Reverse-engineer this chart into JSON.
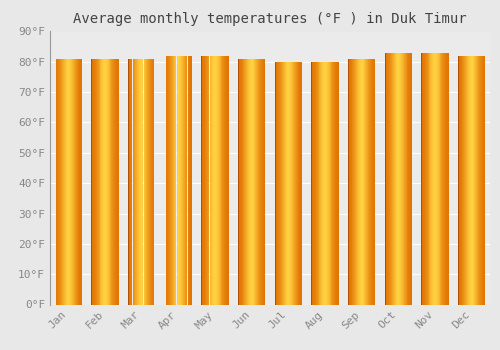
{
  "title": "Average monthly temperatures (°F ) in Duk Timur",
  "months": [
    "Jan",
    "Feb",
    "Mar",
    "Apr",
    "May",
    "Jun",
    "Jul",
    "Aug",
    "Sep",
    "Oct",
    "Nov",
    "Dec"
  ],
  "values": [
    81,
    81,
    81,
    82,
    82,
    81,
    80,
    80,
    81,
    83,
    83,
    82
  ],
  "ylim": [
    0,
    90
  ],
  "yticks": [
    0,
    10,
    20,
    30,
    40,
    50,
    60,
    70,
    80,
    90
  ],
  "bar_color_center": "#FFB800",
  "bar_color_edge": "#E07000",
  "bar_color_highlight": "#FFD060",
  "background_color": "#e8e8e8",
  "plot_bg_color": "#ebebeb",
  "grid_color": "#ffffff",
  "title_fontsize": 10,
  "tick_fontsize": 8,
  "bar_width": 0.75
}
